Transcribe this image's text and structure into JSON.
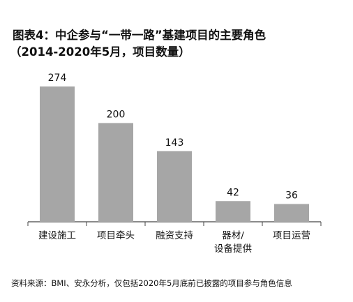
{
  "chart_data": {
    "type": "bar",
    "title": "图表4：中企参与“一带一路”基建项目的主要角色",
    "subtitle": "（2014-2020年5月，项目数量）",
    "categories": [
      "建设施工",
      "项目牵头",
      "融资支持",
      "器材/设备提供",
      "项目运营"
    ],
    "category_lines": [
      [
        "建设施工"
      ],
      [
        "项目牵头"
      ],
      [
        "融资支持"
      ],
      [
        "器材/",
        "设备提供"
      ],
      [
        "项目运营"
      ]
    ],
    "values": [
      274,
      200,
      143,
      42,
      36
    ],
    "ylim": [
      0,
      274
    ],
    "grid": false,
    "legend": "none",
    "bar_color": "#a6a6a6",
    "axis_color": "#444444",
    "source": "资料来源：BMI、安永分析，仅包括2020年5月底前已披露的项目参与角色信息"
  }
}
